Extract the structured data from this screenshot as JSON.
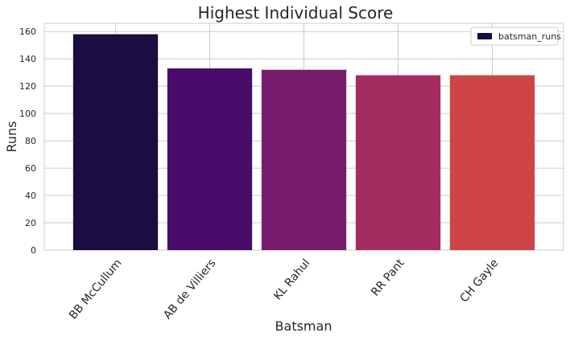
{
  "chart_data": {
    "type": "bar",
    "title": "Highest Individual Score",
    "xlabel": "Batsman",
    "ylabel": "Runs",
    "categories": [
      "BB McCullum",
      "AB de Villiers",
      "KL Rahul",
      "RR Pant",
      "CH Gayle"
    ],
    "series": [
      {
        "name": "batsman_runs",
        "values": [
          158,
          133,
          132,
          128,
          128
        ],
        "colors": [
          "#1b0c41",
          "#4a0c6b",
          "#781c6d",
          "#a52c60",
          "#cf4446"
        ]
      }
    ],
    "ylim": [
      0,
      166
    ],
    "yticks": [
      0,
      20,
      40,
      60,
      80,
      100,
      120,
      140,
      160
    ],
    "grid": true,
    "legend": "top-right"
  }
}
